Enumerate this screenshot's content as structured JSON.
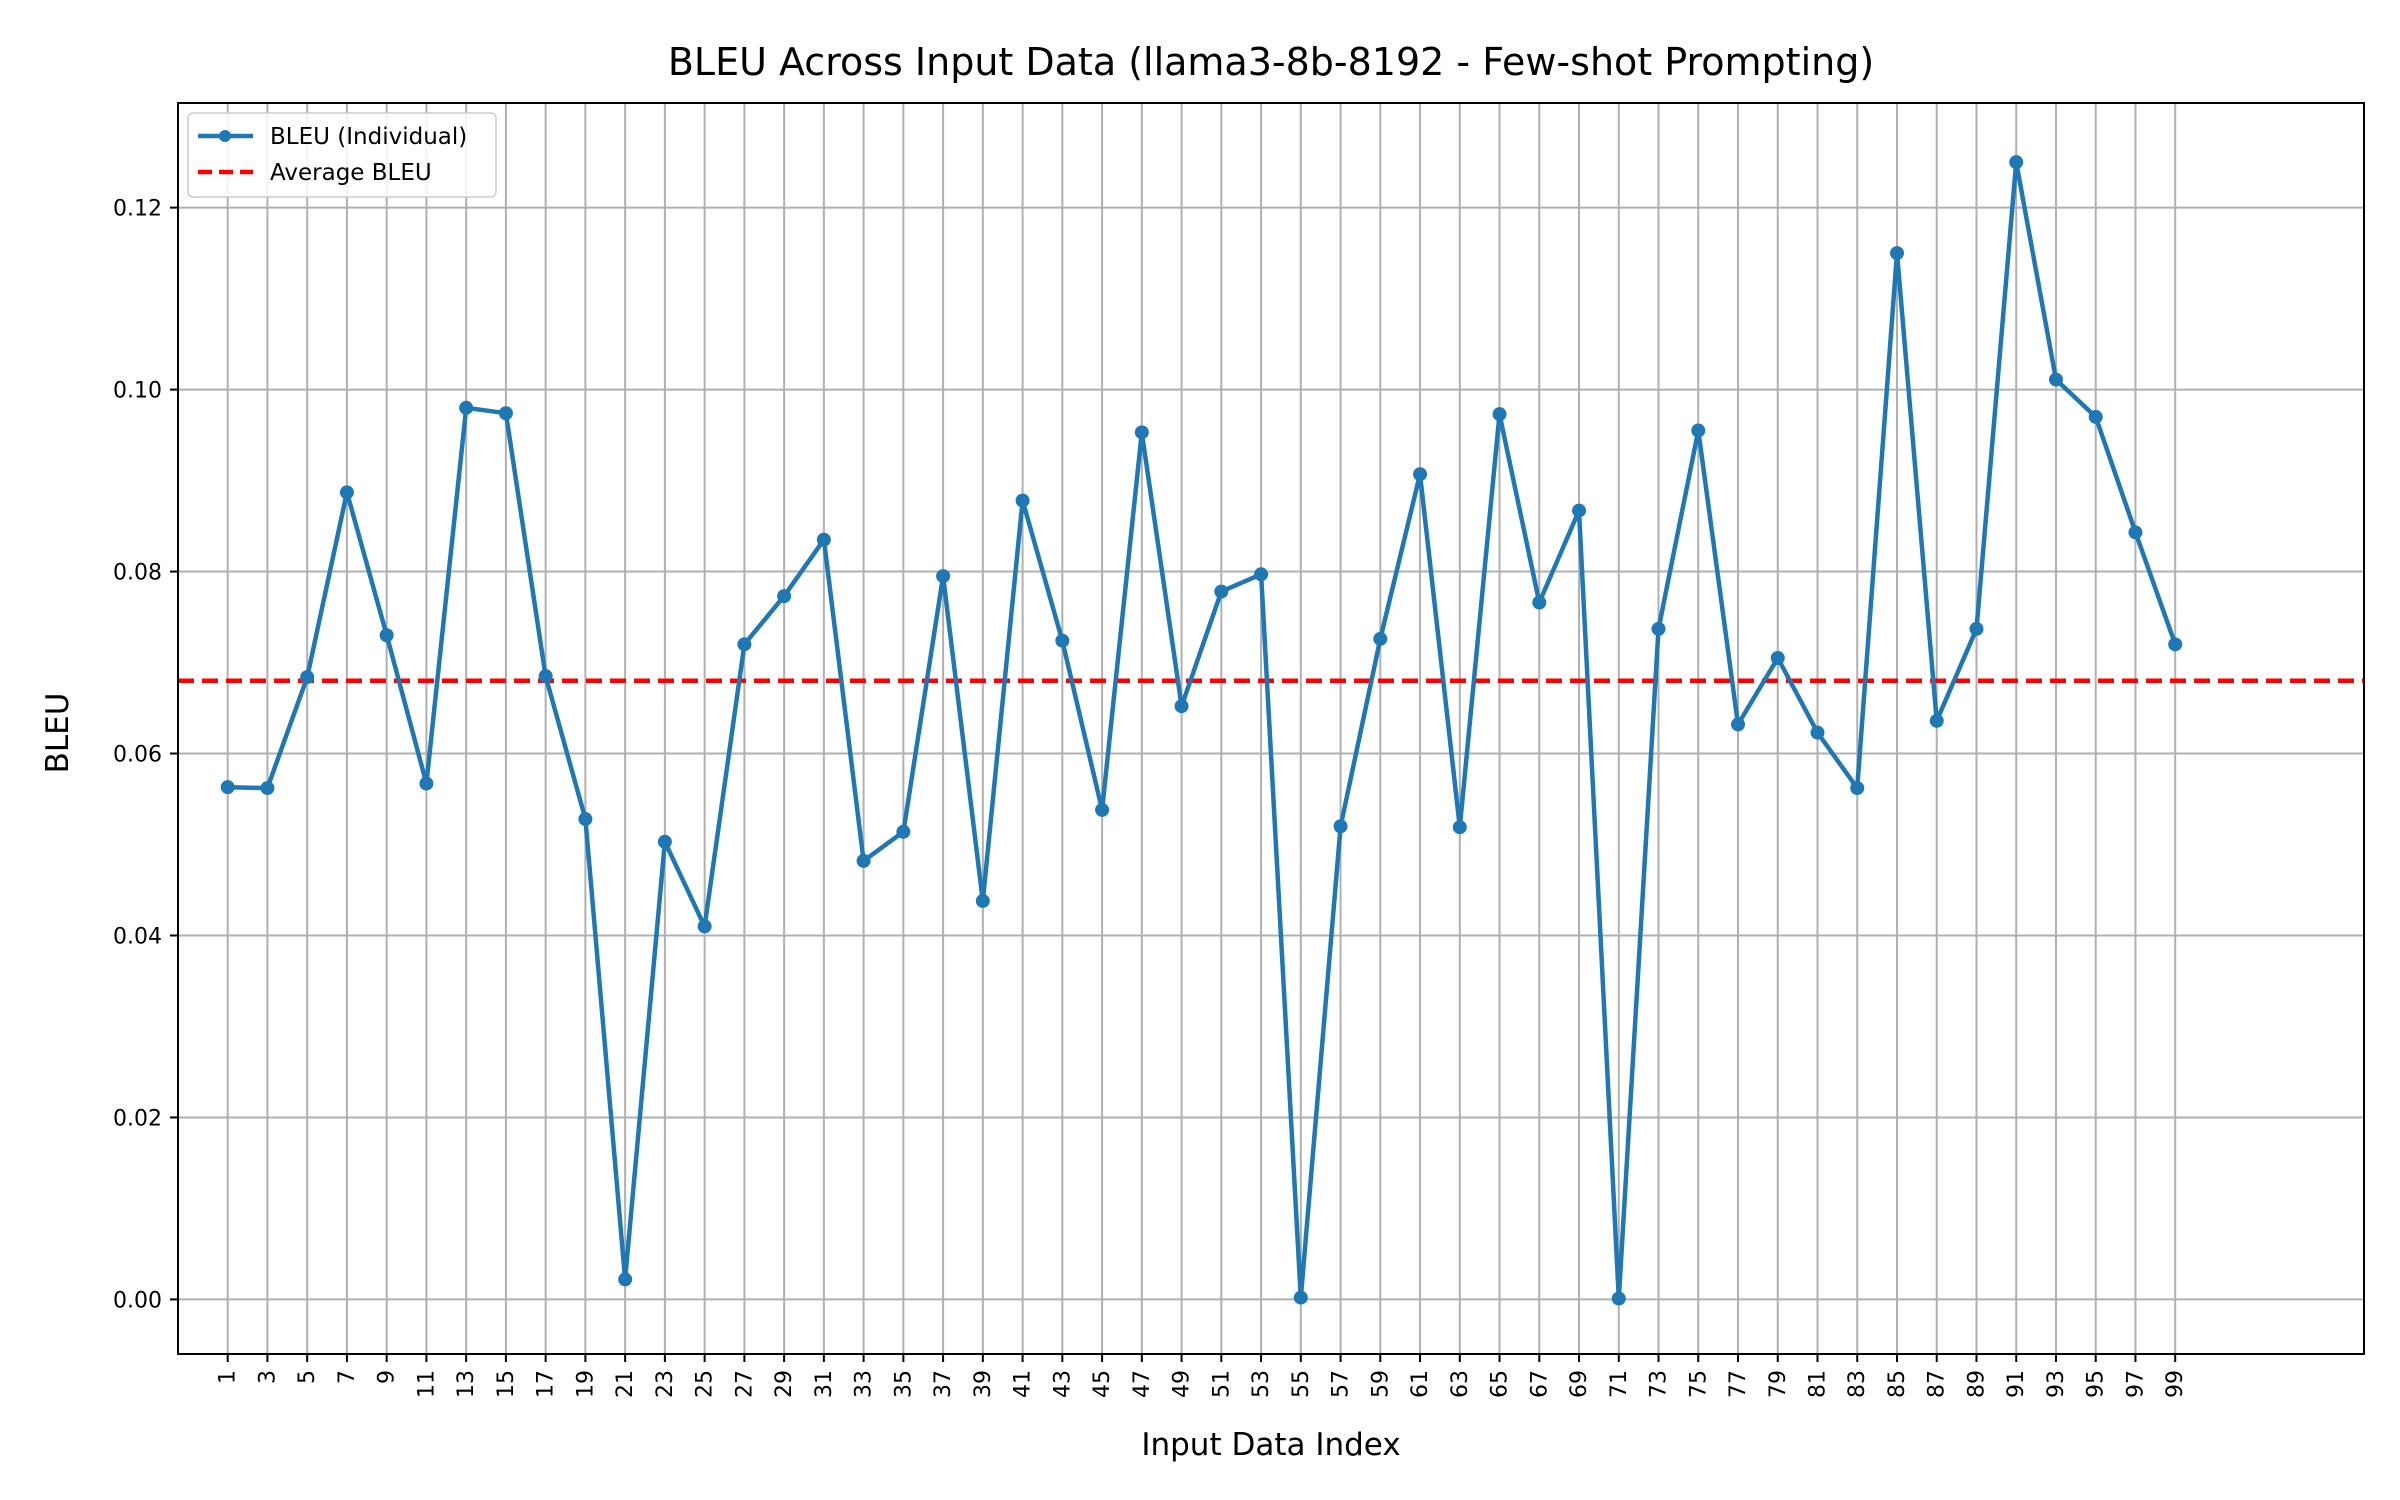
{
  "chart_data": {
    "type": "line",
    "title": "BLEU Across Input Data (llama3-8b-8192 - Few-shot Prompting)",
    "xlabel": "Input Data Index",
    "ylabel": "BLEU",
    "ylim": [
      -0.006,
      0.1315
    ],
    "xlim": [
      -1.5,
      108.5
    ],
    "grid": true,
    "legend_position": "top-left",
    "x": [
      1,
      3,
      5,
      7,
      9,
      11,
      13,
      15,
      17,
      19,
      21,
      23,
      25,
      27,
      29,
      31,
      33,
      35,
      37,
      39,
      41,
      43,
      45,
      47,
      49,
      51,
      53,
      55,
      57,
      59,
      61,
      63,
      65,
      67,
      69,
      71,
      73,
      75,
      77,
      79,
      81,
      83,
      85,
      87,
      89,
      91,
      93,
      95,
      97,
      99
    ],
    "x_tick_labels": [
      "1",
      "3",
      "5",
      "7",
      "9",
      "11",
      "13",
      "15",
      "17",
      "19",
      "21",
      "23",
      "25",
      "27",
      "29",
      "31",
      "33",
      "35",
      "37",
      "39",
      "41",
      "43",
      "45",
      "47",
      "49",
      "51",
      "53",
      "55",
      "57",
      "59",
      "61",
      "63",
      "65",
      "67",
      "69",
      "71",
      "73",
      "75",
      "77",
      "79",
      "81",
      "83",
      "85",
      "87",
      "89",
      "91",
      "93",
      "95",
      "97",
      "99"
    ],
    "y_ticks": [
      0.0,
      0.02,
      0.04,
      0.06,
      0.08,
      0.1,
      0.12
    ],
    "y_tick_labels": [
      "0.00",
      "0.02",
      "0.04",
      "0.06",
      "0.08",
      "0.10",
      "0.12"
    ],
    "series": [
      {
        "name": "BLEU (Individual)",
        "color": "#1f77b4",
        "style": "line-with-markers",
        "values": [
          0.0563,
          0.0562,
          0.0684,
          0.0887,
          0.073,
          0.0567,
          0.098,
          0.0974,
          0.0685,
          0.0528,
          0.0022,
          0.0503,
          0.041,
          0.072,
          0.0773,
          0.0835,
          0.0482,
          0.0514,
          0.0795,
          0.0438,
          0.0878,
          0.0724,
          0.0538,
          0.0953,
          0.0652,
          0.0778,
          0.0797,
          0.0002,
          0.052,
          0.0726,
          0.0907,
          0.0519,
          0.0973,
          0.0766,
          0.0867,
          0.0001,
          0.0737,
          0.0955,
          0.0632,
          0.0705,
          0.0623,
          0.0562,
          0.115,
          0.0636,
          0.0737,
          0.125,
          0.1011,
          0.097,
          0.0843,
          0.072
        ]
      }
    ],
    "average": {
      "name": "Average BLEU",
      "color": "#ff0000",
      "style": "dashed",
      "value": 0.068
    }
  }
}
